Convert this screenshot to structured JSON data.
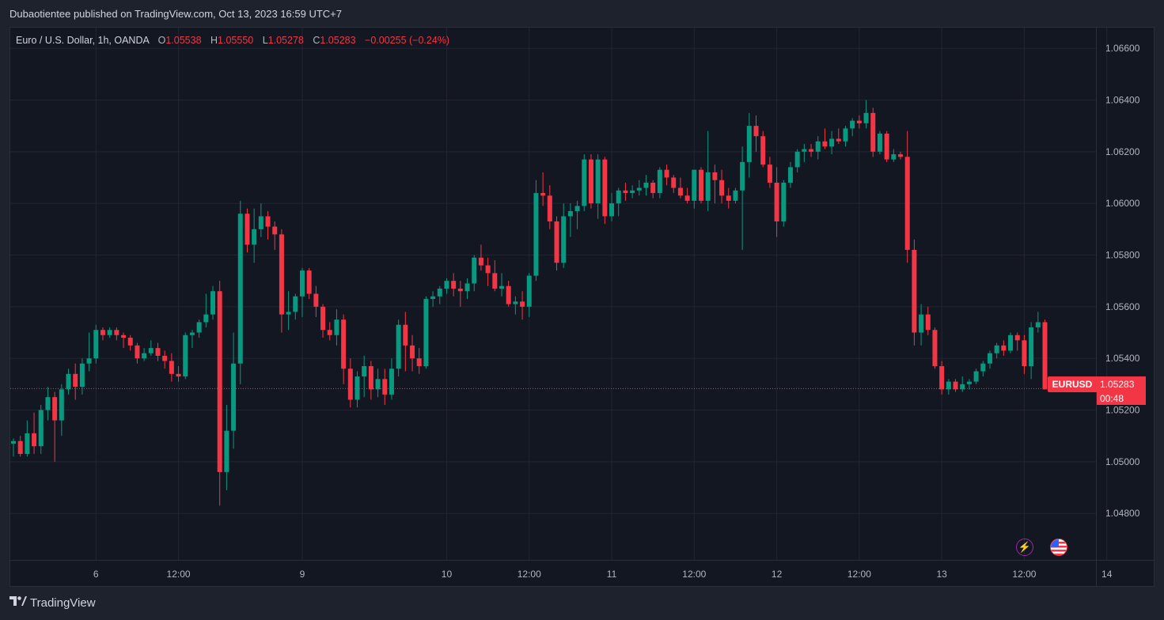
{
  "header": {
    "publisher": "Dubaotientee published on TradingView.com, Oct 13, 2023 16:59 UTC+7"
  },
  "legend": {
    "symbol": "Euro / U.S. Dollar, 1h, OANDA",
    "o_label": "O",
    "o_value": "1.05538",
    "h_label": "H",
    "h_value": "1.05550",
    "l_label": "L",
    "l_value": "1.05278",
    "c_label": "C",
    "c_value": "1.05283",
    "change": "−0.00255 (−0.24%)"
  },
  "price_tag": {
    "symbol": "EURUSD",
    "price": "1.05283",
    "countdown": "00:48"
  },
  "footer": {
    "brand": "TradingView"
  },
  "icons": [
    "lightning-icon",
    "us-flag-icon",
    "tradingview-logo-icon"
  ],
  "chart_data": {
    "type": "candlestick",
    "current_price": 1.05283,
    "ylim": [
      1.0462,
      1.0668
    ],
    "y_ticks": [
      1.048,
      1.05,
      1.052,
      1.054,
      1.056,
      1.058,
      1.06,
      1.062,
      1.064,
      1.066
    ],
    "y_tick_labels": [
      "1.04800",
      "1.05000",
      "1.05200",
      "1.05400",
      "1.05600",
      "1.05800",
      "1.06000",
      "1.06200",
      "1.06400",
      "1.06600"
    ],
    "x_ticks": [
      {
        "label": "6",
        "index": 12
      },
      {
        "label": "12:00",
        "index": 24
      },
      {
        "label": "9",
        "index": 42
      },
      {
        "label": "10",
        "index": 63
      },
      {
        "label": "12:00",
        "index": 75
      },
      {
        "label": "11",
        "index": 87
      },
      {
        "label": "12:00",
        "index": 99
      },
      {
        "label": "12",
        "index": 111
      },
      {
        "label": "12:00",
        "index": 123
      },
      {
        "label": "13",
        "index": 135
      },
      {
        "label": "12:00",
        "index": 147
      },
      {
        "label": "14",
        "index": 159
      }
    ],
    "grid": true,
    "colors": {
      "up": "#089981",
      "down": "#f23645",
      "background": "#131722",
      "grid": "#232632",
      "text": "#b2b5be"
    },
    "candles": [
      [
        1.0507,
        1.0509,
        1.0502,
        1.0508
      ],
      [
        1.0508,
        1.051,
        1.0502,
        1.0503
      ],
      [
        1.0503,
        1.0516,
        1.0502,
        1.0511
      ],
      [
        1.0511,
        1.0519,
        1.0503,
        1.0506
      ],
      [
        1.0506,
        1.0522,
        1.0503,
        1.052
      ],
      [
        1.052,
        1.0529,
        1.0516,
        1.0525
      ],
      [
        1.0525,
        1.0527,
        1.05,
        1.0516
      ],
      [
        1.0516,
        1.053,
        1.051,
        1.0528
      ],
      [
        1.0528,
        1.0536,
        1.0526,
        1.0534
      ],
      [
        1.0534,
        1.0538,
        1.0524,
        1.0529
      ],
      [
        1.0529,
        1.054,
        1.0526,
        1.0538
      ],
      [
        1.0538,
        1.055,
        1.0535,
        1.054
      ],
      [
        1.054,
        1.0553,
        1.0538,
        1.0551
      ],
      [
        1.0551,
        1.0552,
        1.0547,
        1.0549
      ],
      [
        1.0549,
        1.0552,
        1.0548,
        1.0551
      ],
      [
        1.0551,
        1.0552,
        1.0547,
        1.0549
      ],
      [
        1.0549,
        1.055,
        1.0544,
        1.0548
      ],
      [
        1.0548,
        1.0549,
        1.0543,
        1.0545
      ],
      [
        1.0545,
        1.0546,
        1.0538,
        1.054
      ],
      [
        1.054,
        1.0544,
        1.0539,
        1.0542
      ],
      [
        1.0542,
        1.0547,
        1.0541,
        1.0544
      ],
      [
        1.0544,
        1.0546,
        1.0539,
        1.0541
      ],
      [
        1.0541,
        1.0543,
        1.0536,
        1.0539
      ],
      [
        1.0539,
        1.0542,
        1.0531,
        1.0534
      ],
      [
        1.0534,
        1.0537,
        1.0531,
        1.0533
      ],
      [
        1.0533,
        1.055,
        1.0532,
        1.0549
      ],
      [
        1.0549,
        1.0551,
        1.0544,
        1.055
      ],
      [
        1.055,
        1.0555,
        1.0548,
        1.0554
      ],
      [
        1.0554,
        1.0565,
        1.0552,
        1.0557
      ],
      [
        1.0557,
        1.0568,
        1.0555,
        1.0566
      ],
      [
        1.0566,
        1.057,
        1.0483,
        1.0496
      ],
      [
        1.0496,
        1.0522,
        1.0489,
        1.0512
      ],
      [
        1.0512,
        1.055,
        1.0505,
        1.0538
      ],
      [
        1.0538,
        1.0601,
        1.053,
        1.0596
      ],
      [
        1.0596,
        1.0598,
        1.0581,
        1.0584
      ],
      [
        1.0584,
        1.0598,
        1.0577,
        1.059
      ],
      [
        1.059,
        1.06,
        1.0587,
        1.0595
      ],
      [
        1.0595,
        1.0597,
        1.0586,
        1.0591
      ],
      [
        1.0591,
        1.0593,
        1.0582,
        1.0588
      ],
      [
        1.0588,
        1.059,
        1.055,
        1.0557
      ],
      [
        1.0557,
        1.0566,
        1.0551,
        1.0558
      ],
      [
        1.0558,
        1.0565,
        1.0555,
        1.0564
      ],
      [
        1.0564,
        1.0575,
        1.0556,
        1.0574
      ],
      [
        1.0574,
        1.0575,
        1.0563,
        1.0565
      ],
      [
        1.0565,
        1.0568,
        1.0556,
        1.056
      ],
      [
        1.056,
        1.0561,
        1.0548,
        1.0551
      ],
      [
        1.0551,
        1.0554,
        1.0547,
        1.0549
      ],
      [
        1.0549,
        1.0559,
        1.0545,
        1.0555
      ],
      [
        1.0555,
        1.0557,
        1.053,
        1.0536
      ],
      [
        1.0536,
        1.054,
        1.0521,
        1.0524
      ],
      [
        1.0524,
        1.0535,
        1.0521,
        1.0533
      ],
      [
        1.0533,
        1.0541,
        1.0525,
        1.0537
      ],
      [
        1.0537,
        1.0539,
        1.0524,
        1.0528
      ],
      [
        1.0528,
        1.0536,
        1.0525,
        1.0532
      ],
      [
        1.0532,
        1.0536,
        1.0522,
        1.0526
      ],
      [
        1.0526,
        1.054,
        1.0524,
        1.0536
      ],
      [
        1.0536,
        1.0555,
        1.0533,
        1.0553
      ],
      [
        1.0553,
        1.0558,
        1.0535,
        1.0545
      ],
      [
        1.0545,
        1.0549,
        1.0535,
        1.054
      ],
      [
        1.054,
        1.0544,
        1.0534,
        1.0537
      ],
      [
        1.0537,
        1.0564,
        1.0536,
        1.0563
      ],
      [
        1.0563,
        1.0566,
        1.056,
        1.0564
      ],
      [
        1.0564,
        1.0568,
        1.0561,
        1.0567
      ],
      [
        1.0567,
        1.0571,
        1.0565,
        1.057
      ],
      [
        1.057,
        1.0573,
        1.0564,
        1.0567
      ],
      [
        1.0567,
        1.057,
        1.056,
        1.0566
      ],
      [
        1.0566,
        1.0571,
        1.0563,
        1.0569
      ],
      [
        1.0569,
        1.058,
        1.0566,
        1.0579
      ],
      [
        1.0579,
        1.0584,
        1.0574,
        1.0576
      ],
      [
        1.0576,
        1.0579,
        1.0568,
        1.0573
      ],
      [
        1.0573,
        1.0578,
        1.0566,
        1.0567
      ],
      [
        1.0567,
        1.0573,
        1.0564,
        1.0568
      ],
      [
        1.0568,
        1.057,
        1.056,
        1.0561
      ],
      [
        1.0561,
        1.0564,
        1.0557,
        1.0562
      ],
      [
        1.0562,
        1.0566,
        1.0555,
        1.056
      ],
      [
        1.056,
        1.0573,
        1.0556,
        1.0572
      ],
      [
        1.0572,
        1.0609,
        1.057,
        1.0604
      ],
      [
        1.0604,
        1.0612,
        1.0599,
        1.0603
      ],
      [
        1.0603,
        1.0607,
        1.059,
        1.0593
      ],
      [
        1.0593,
        1.0595,
        1.0574,
        1.0577
      ],
      [
        1.0577,
        1.06,
        1.0575,
        1.0595
      ],
      [
        1.0595,
        1.06,
        1.0587,
        1.0597
      ],
      [
        1.0597,
        1.0601,
        1.059,
        1.0599
      ],
      [
        1.0599,
        1.0619,
        1.0597,
        1.0617
      ],
      [
        1.0617,
        1.0619,
        1.0598,
        1.06
      ],
      [
        1.06,
        1.0619,
        1.0594,
        1.0617
      ],
      [
        1.0617,
        1.0618,
        1.0592,
        1.0595
      ],
      [
        1.0595,
        1.0604,
        1.0593,
        1.06
      ],
      [
        1.06,
        1.0606,
        1.0595,
        1.0605
      ],
      [
        1.0605,
        1.0608,
        1.0601,
        1.0604
      ],
      [
        1.0604,
        1.0607,
        1.0602,
        1.0605
      ],
      [
        1.0605,
        1.0609,
        1.0603,
        1.0606
      ],
      [
        1.0606,
        1.0611,
        1.0603,
        1.0608
      ],
      [
        1.0608,
        1.0609,
        1.0602,
        1.0604
      ],
      [
        1.0604,
        1.0614,
        1.0602,
        1.0613
      ],
      [
        1.0613,
        1.0615,
        1.0607,
        1.061
      ],
      [
        1.061,
        1.0611,
        1.0604,
        1.0606
      ],
      [
        1.0606,
        1.061,
        1.0602,
        1.0603
      ],
      [
        1.0603,
        1.0606,
        1.06,
        1.0601
      ],
      [
        1.0601,
        1.0613,
        1.0598,
        1.0613
      ],
      [
        1.0613,
        1.0614,
        1.06,
        1.0601
      ],
      [
        1.0601,
        1.0628,
        1.0597,
        1.0612
      ],
      [
        1.0612,
        1.0615,
        1.06,
        1.0609
      ],
      [
        1.0609,
        1.0613,
        1.06,
        1.0603
      ],
      [
        1.0603,
        1.0606,
        1.0598,
        1.0601
      ],
      [
        1.0601,
        1.0606,
        1.06,
        1.0605
      ],
      [
        1.0605,
        1.0622,
        1.0582,
        1.0616
      ],
      [
        1.0616,
        1.0635,
        1.061,
        1.063
      ],
      [
        1.063,
        1.0634,
        1.062,
        1.0626
      ],
      [
        1.0626,
        1.0628,
        1.0614,
        1.0615
      ],
      [
        1.0615,
        1.0618,
        1.0606,
        1.0608
      ],
      [
        1.0608,
        1.0614,
        1.0587,
        1.0593
      ],
      [
        1.0593,
        1.0609,
        1.0591,
        1.0608
      ],
      [
        1.0608,
        1.0616,
        1.0606,
        1.0614
      ],
      [
        1.0614,
        1.0621,
        1.0612,
        1.062
      ],
      [
        1.062,
        1.0623,
        1.0616,
        1.0621
      ],
      [
        1.0621,
        1.0623,
        1.0618,
        1.062
      ],
      [
        1.062,
        1.0626,
        1.0617,
        1.0624
      ],
      [
        1.0624,
        1.0629,
        1.0621,
        1.0622
      ],
      [
        1.0622,
        1.0628,
        1.0619,
        1.0625
      ],
      [
        1.0625,
        1.0629,
        1.0623,
        1.0624
      ],
      [
        1.0624,
        1.063,
        1.0622,
        1.0629
      ],
      [
        1.0629,
        1.0633,
        1.0626,
        1.0632
      ],
      [
        1.0632,
        1.0634,
        1.0629,
        1.0631
      ],
      [
        1.0631,
        1.064,
        1.0629,
        1.0635
      ],
      [
        1.0635,
        1.0637,
        1.0618,
        1.062
      ],
      [
        1.062,
        1.0628,
        1.0619,
        1.0627
      ],
      [
        1.0627,
        1.0628,
        1.0616,
        1.0617
      ],
      [
        1.0617,
        1.0621,
        1.0616,
        1.0619
      ],
      [
        1.0619,
        1.062,
        1.0617,
        1.0618
      ],
      [
        1.0618,
        1.0628,
        1.0577,
        1.0582
      ],
      [
        1.0582,
        1.0586,
        1.0545,
        1.055
      ],
      [
        1.055,
        1.0561,
        1.0545,
        1.0557
      ],
      [
        1.0557,
        1.056,
        1.0549,
        1.0551
      ],
      [
        1.0551,
        1.0552,
        1.0536,
        1.0537
      ],
      [
        1.0537,
        1.0539,
        1.0526,
        1.0528
      ],
      [
        1.0528,
        1.0532,
        1.0526,
        1.0531
      ],
      [
        1.0531,
        1.0532,
        1.0527,
        1.0528
      ],
      [
        1.0528,
        1.0533,
        1.0527,
        1.053
      ],
      [
        1.053,
        1.0532,
        1.0528,
        1.0531
      ],
      [
        1.0531,
        1.0536,
        1.053,
        1.0535
      ],
      [
        1.0535,
        1.0539,
        1.0533,
        1.0538
      ],
      [
        1.0538,
        1.0543,
        1.0536,
        1.0542
      ],
      [
        1.0542,
        1.0546,
        1.054,
        1.0545
      ],
      [
        1.0545,
        1.0547,
        1.0541,
        1.0543
      ],
      [
        1.0543,
        1.055,
        1.0542,
        1.0549
      ],
      [
        1.0549,
        1.055,
        1.0543,
        1.0547
      ],
      [
        1.0547,
        1.0549,
        1.0534,
        1.0537
      ],
      [
        1.0537,
        1.0554,
        1.0532,
        1.0552
      ],
      [
        1.0552,
        1.0558,
        1.055,
        1.0554
      ],
      [
        1.0554,
        1.0555,
        1.0528,
        1.0528
      ]
    ]
  }
}
